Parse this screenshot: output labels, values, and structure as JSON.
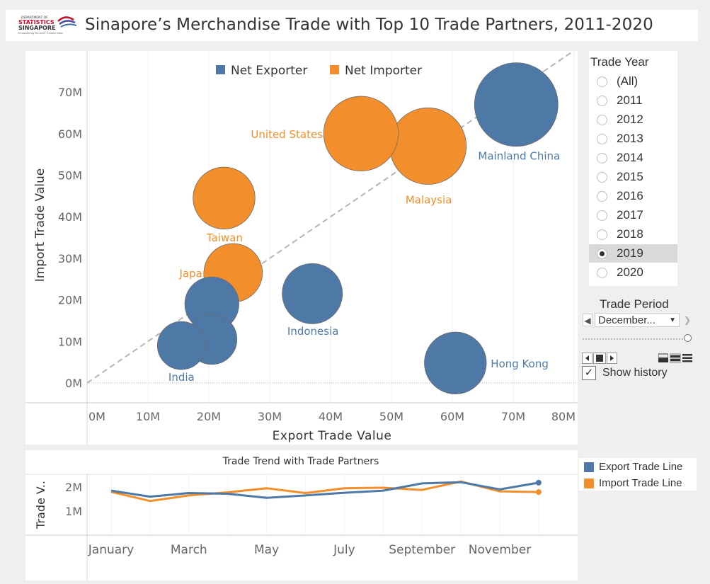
{
  "header": {
    "title": "Sinapore’s Merchandise Trade with  Top 10 Trade Partners, 2011-2020",
    "logo_lines": [
      "DEPARTMENT OF",
      "STATISTICS",
      "SINGAPORE",
      "Empowering You with Trusted Data"
    ]
  },
  "colors": {
    "exporter": "#4e79a7",
    "importer": "#f28e2b",
    "diagonal": "#b5b5b5"
  },
  "chart_data": [
    {
      "type": "scatter",
      "variant": "bubble",
      "title": "",
      "xlabel": "Export Trade Value",
      "ylabel": "Import Trade Value",
      "xlim": [
        0,
        80000000
      ],
      "ylim": [
        0,
        80000000
      ],
      "x_ticks": [
        "0M",
        "10M",
        "20M",
        "30M",
        "40M",
        "50M",
        "60M",
        "70M",
        "80M"
      ],
      "y_ticks": [
        "0M",
        "10M",
        "20M",
        "30M",
        "40M",
        "50M",
        "60M",
        "70M"
      ],
      "legend": {
        "position": "top",
        "entries": [
          {
            "name": "Net Exporter",
            "group": "exporter"
          },
          {
            "name": "Net Importer",
            "group": "importer"
          }
        ]
      },
      "reference_line": "y = x",
      "points": [
        {
          "label": "Mainland China",
          "x": 70500000,
          "y": 67000000,
          "size": 100,
          "group": "exporter"
        },
        {
          "label": "Malaysia",
          "x": 56000000,
          "y": 57000000,
          "size": 84,
          "group": "importer"
        },
        {
          "label": "United States",
          "x": 45000000,
          "y": 60000000,
          "size": 80,
          "group": "importer"
        },
        {
          "label": "Hong Kong",
          "x": 60500000,
          "y": 4800000,
          "size": 55,
          "group": "exporter"
        },
        {
          "label": "Indonesia",
          "x": 37000000,
          "y": 21500000,
          "size": 52,
          "group": "exporter"
        },
        {
          "label": "Taiwan",
          "x": 22500000,
          "y": 44500000,
          "size": 55,
          "group": "importer"
        },
        {
          "label": "Japan",
          "x": 24000000,
          "y": 26500000,
          "size": 49,
          "group": "importer"
        },
        {
          "label": "",
          "x": 20500000,
          "y": 19000000,
          "size": 42,
          "group": "exporter"
        },
        {
          "label": "",
          "x": 20500000,
          "y": 10500000,
          "size": 36,
          "group": "exporter"
        },
        {
          "label": "India",
          "x": 15500000,
          "y": 9000000,
          "size": 33,
          "group": "exporter"
        }
      ]
    },
    {
      "type": "line",
      "title": "Trade Trend with Trade Partners",
      "ylabel": "Trade V..",
      "x": [
        "January",
        "February",
        "March",
        "April",
        "May",
        "June",
        "July",
        "August",
        "September",
        "October",
        "November",
        "December"
      ],
      "x_tick_labels": [
        "January",
        "March",
        "May",
        "July",
        "September",
        "November"
      ],
      "y_ticks": [
        "1M",
        "2M"
      ],
      "ylim": [
        0,
        2400000
      ],
      "series": [
        {
          "name": "Export Trade Line",
          "color": "#4e79a7",
          "values": [
            1850000,
            1600000,
            1750000,
            1720000,
            1550000,
            1650000,
            1760000,
            1850000,
            2150000,
            2200000,
            1900000,
            2180000
          ]
        },
        {
          "name": "Import Trade Line",
          "color": "#f28e2b",
          "values": [
            1800000,
            1420000,
            1650000,
            1780000,
            1950000,
            1750000,
            1950000,
            1970000,
            1880000,
            2230000,
            1820000,
            1790000
          ]
        }
      ]
    }
  ],
  "filters": {
    "trade_year": {
      "title": "Trade Year",
      "options": [
        "(All)",
        "2011",
        "2012",
        "2013",
        "2014",
        "2015",
        "2016",
        "2017",
        "2018",
        "2019",
        "2020"
      ],
      "selected": "2019"
    },
    "trade_period": {
      "title": "Trade Period",
      "value": "December...",
      "show_history_label": "Show history",
      "show_history": true
    }
  },
  "bottom_legend": {
    "entries": [
      "Export Trade Line",
      "Import Trade Line"
    ]
  }
}
